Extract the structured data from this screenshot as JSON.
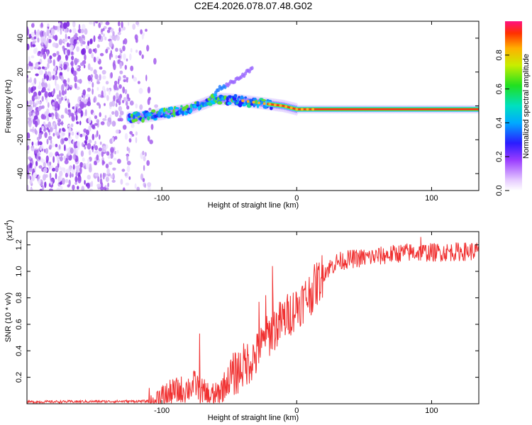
{
  "title": "C2E4.2026.078.07.48.G02",
  "chart_data": [
    {
      "type": "heatmap",
      "name": "spectrogram",
      "xlabel": "Height of straight line (km)",
      "ylabel": "Frequency (Hz)",
      "xlim": [
        -200,
        135
      ],
      "ylim": [
        -50,
        50
      ],
      "xticks": [
        -100,
        0,
        100
      ],
      "yticks": [
        -40,
        -20,
        0,
        20,
        40
      ],
      "colorbar": {
        "label": "Normalized spectral amplitude",
        "range": [
          0,
          1
        ],
        "ticks": [
          0.0,
          0.2,
          0.4,
          0.6,
          0.8
        ],
        "tick_labels": [
          "0.0",
          "0.2",
          "0.4",
          "0.6",
          "0.8"
        ]
      },
      "noise_region_km": [
        -200,
        -108
      ],
      "main_track": [
        {
          "x": -122,
          "y": -7
        },
        {
          "x": -110,
          "y": -6
        },
        {
          "x": -95,
          "y": -4
        },
        {
          "x": -80,
          "y": -2
        },
        {
          "x": -70,
          "y": 1
        },
        {
          "x": -60,
          "y": 4
        },
        {
          "x": -52,
          "y": 4
        },
        {
          "x": -40,
          "y": 3
        },
        {
          "x": -30,
          "y": 2
        },
        {
          "x": -20,
          "y": 1
        },
        {
          "x": -10,
          "y": 0
        },
        {
          "x": 0,
          "y": -2
        },
        {
          "x": 20,
          "y": -2
        },
        {
          "x": 60,
          "y": -2
        },
        {
          "x": 100,
          "y": -2
        },
        {
          "x": 135,
          "y": -2
        }
      ],
      "branch_track": [
        {
          "x": -65,
          "y": 3
        },
        {
          "x": -58,
          "y": 10
        },
        {
          "x": -50,
          "y": 13
        },
        {
          "x": -42,
          "y": 17
        },
        {
          "x": -33,
          "y": 22
        }
      ]
    },
    {
      "type": "line",
      "name": "snr",
      "xlabel": "Height of straight line (km)",
      "ylabel": "SNR (10 * v/v)",
      "scale_label": "(x10",
      "scale_exponent": "4",
      "xlim": [
        -200,
        135
      ],
      "ylim": [
        0,
        1.3
      ],
      "xticks": [
        -100,
        0,
        100
      ],
      "yticks": [
        0.2,
        0.4,
        0.6,
        0.8,
        1.0,
        1.2
      ],
      "ytick_labels": [
        "0.2",
        "0.4",
        "0.6",
        "0.8",
        "1.0",
        "1.2"
      ],
      "color": "#f03030",
      "envelope": [
        {
          "x": -200,
          "y": 0.015
        },
        {
          "x": -110,
          "y": 0.02
        },
        {
          "x": -100,
          "y": 0.05
        },
        {
          "x": -90,
          "y": 0.1
        },
        {
          "x": -80,
          "y": 0.13
        },
        {
          "x": -75,
          "y": 0.16
        },
        {
          "x": -68,
          "y": 0.08
        },
        {
          "x": -60,
          "y": 0.06
        },
        {
          "x": -50,
          "y": 0.2
        },
        {
          "x": -40,
          "y": 0.3
        },
        {
          "x": -30,
          "y": 0.38
        },
        {
          "x": -20,
          "y": 0.55
        },
        {
          "x": -10,
          "y": 0.65
        },
        {
          "x": 0,
          "y": 0.75
        },
        {
          "x": 10,
          "y": 0.85
        },
        {
          "x": 20,
          "y": 1.0
        },
        {
          "x": 30,
          "y": 1.08
        },
        {
          "x": 40,
          "y": 1.1
        },
        {
          "x": 60,
          "y": 1.12
        },
        {
          "x": 80,
          "y": 1.15
        },
        {
          "x": 100,
          "y": 1.15
        },
        {
          "x": 135,
          "y": 1.16
        }
      ],
      "spikes": [
        {
          "x": -72,
          "y": 0.53
        },
        {
          "x": -28,
          "y": 0.77
        },
        {
          "x": -23,
          "y": 0.82
        },
        {
          "x": -18,
          "y": 1.04
        },
        {
          "x": 92,
          "y": 1.26
        }
      ]
    }
  ]
}
